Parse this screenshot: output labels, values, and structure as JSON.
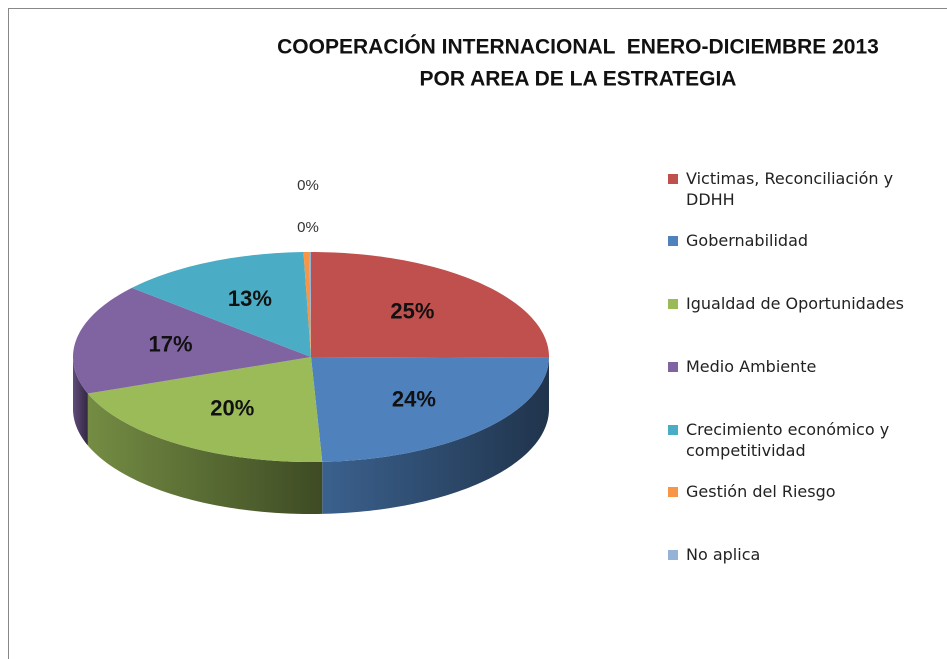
{
  "chart_data": {
    "type": "pie3d",
    "title": [
      "COOPERACIÓN INTERNACIONAL  ENERO-DICIEMBRE 2013",
      "POR AREA DE LA ESTRATEGIA"
    ],
    "categories": [
      "Victimas, Reconciliación y DDHH",
      "Gobernabilidad",
      "Igualdad de Oportunidades",
      "Medio Ambiente",
      "Crecimiento económico y competitividad",
      "Gestión del Riesgo",
      "No aplica"
    ],
    "values": [
      25,
      24,
      20,
      17,
      13,
      0.4,
      0.1
    ],
    "value_labels": [
      "25%",
      "24%",
      "20%",
      "17%",
      "13%",
      "0%",
      "0%"
    ],
    "colors": [
      "#c0504d",
      "#4f81bd",
      "#9bbb59",
      "#8064a2",
      "#4bacc6",
      "#f79646",
      "#95b3d7"
    ],
    "legend": "right"
  }
}
